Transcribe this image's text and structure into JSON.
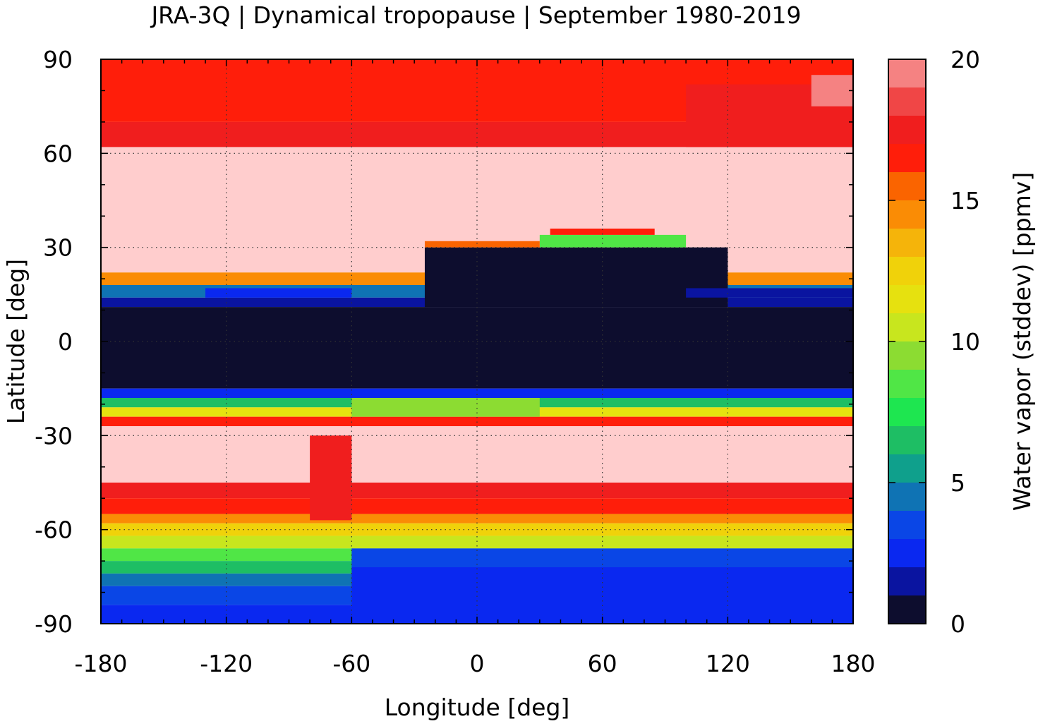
{
  "chart_data": {
    "type": "heatmap",
    "title": "JRA-3Q | Dynamical tropopause | September 1980-2019",
    "xlabel": "Longitude [deg]",
    "ylabel": "Latitude [deg]",
    "xlim": [
      -180,
      180
    ],
    "ylim": [
      -90,
      90
    ],
    "x_ticks": [
      "-180",
      "-120",
      "-60",
      "0",
      "60",
      "120",
      "180"
    ],
    "y_ticks": [
      "90",
      "60",
      "30",
      "0",
      "-30",
      "-60",
      "-90"
    ],
    "x_tick_values": [
      -180,
      -120,
      -60,
      0,
      60,
      120,
      180
    ],
    "y_tick_values": [
      90,
      60,
      30,
      0,
      -30,
      -60,
      -90
    ],
    "grid": true,
    "colorbar": {
      "label": "Water vapor (stddev) [ppmv]",
      "range": [
        0,
        20
      ],
      "tick_values": [
        0,
        5,
        10,
        15,
        20
      ],
      "tick_labels": [
        "0",
        "5",
        "10",
        "15",
        "20"
      ],
      "levels": [
        {
          "min": 0,
          "max": 1,
          "color": "#0d0d2e"
        },
        {
          "min": 1,
          "max": 2,
          "color": "#0a14a0"
        },
        {
          "min": 2,
          "max": 3,
          "color": "#0a28f0"
        },
        {
          "min": 3,
          "max": 4,
          "color": "#0a46e6"
        },
        {
          "min": 4,
          "max": 5,
          "color": "#0f73b4"
        },
        {
          "min": 5,
          "max": 6,
          "color": "#0fa08c"
        },
        {
          "min": 6,
          "max": 7,
          "color": "#1ebe64"
        },
        {
          "min": 7,
          "max": 8,
          "color": "#1ee650"
        },
        {
          "min": 8,
          "max": 9,
          "color": "#50e646"
        },
        {
          "min": 9,
          "max": 10,
          "color": "#8cdc32"
        },
        {
          "min": 10,
          "max": 11,
          "color": "#c8e61e"
        },
        {
          "min": 11,
          "max": 12,
          "color": "#e6e10f"
        },
        {
          "min": 12,
          "max": 13,
          "color": "#f0d20a"
        },
        {
          "min": 13,
          "max": 14,
          "color": "#f5b40a"
        },
        {
          "min": 14,
          "max": 15,
          "color": "#fa8c05"
        },
        {
          "min": 15,
          "max": 16,
          "color": "#fa6400"
        },
        {
          "min": 16,
          "max": 17,
          "color": "#ff1e0a"
        },
        {
          "min": 17,
          "max": 18,
          "color": "#f01e1e"
        },
        {
          "min": 18,
          "max": 19,
          "color": "#f04646"
        },
        {
          "min": 19,
          "max": 20,
          "color": "#f58282"
        },
        {
          "min": 20,
          "max": 21,
          "color": "#ffcdcd"
        }
      ]
    },
    "zonal_bands": [
      {
        "lat_min": 70,
        "lat_max": 90,
        "value": 16.5
      },
      {
        "lat_min": 62,
        "lat_max": 70,
        "value": 17.5
      },
      {
        "lat_min": 22,
        "lat_max": 62,
        "value": 20.5
      },
      {
        "lat_min": 18,
        "lat_max": 22,
        "value": 14.5
      },
      {
        "lat_min": 14,
        "lat_max": 18,
        "value": 4.5
      },
      {
        "lat_min": 11,
        "lat_max": 14,
        "value": 1.5
      },
      {
        "lat_min": -15,
        "lat_max": 11,
        "value": 0.5
      },
      {
        "lat_min": -18,
        "lat_max": -15,
        "value": 2.5
      },
      {
        "lat_min": -21,
        "lat_max": -18,
        "value": 6.5
      },
      {
        "lat_min": -24,
        "lat_max": -21,
        "value": 11.5
      },
      {
        "lat_min": -27,
        "lat_max": -24,
        "value": 16.5
      },
      {
        "lat_min": -45,
        "lat_max": -27,
        "value": 20.5
      },
      {
        "lat_min": -50,
        "lat_max": -45,
        "value": 17.5
      },
      {
        "lat_min": -55,
        "lat_max": -50,
        "value": 16.5
      },
      {
        "lat_min": -58,
        "lat_max": -55,
        "value": 14.5
      },
      {
        "lat_min": -62,
        "lat_max": -58,
        "value": 12.5
      },
      {
        "lat_min": -66,
        "lat_max": -62,
        "value": 10.5
      },
      {
        "lat_min": -70,
        "lat_max": -66,
        "value": 8.5
      },
      {
        "lat_min": -74,
        "lat_max": -70,
        "value": 6.5
      },
      {
        "lat_min": -78,
        "lat_max": -74,
        "value": 4.5
      },
      {
        "lat_min": -84,
        "lat_max": -78,
        "value": 3.5
      },
      {
        "lat_min": -90,
        "lat_max": -84,
        "value": 2.5
      }
    ],
    "features": [
      {
        "lon_min": -25,
        "lon_max": 120,
        "lat_min": 11,
        "lat_max": 30,
        "value": 0.5
      },
      {
        "lon_min": 30,
        "lon_max": 100,
        "lat_min": 30,
        "lat_max": 34,
        "value": 8.5
      },
      {
        "lon_min": 35,
        "lon_max": 85,
        "lat_min": 34,
        "lat_max": 36,
        "value": 16.5
      },
      {
        "lon_min": -25,
        "lon_max": 30,
        "lat_min": 30,
        "lat_max": 32,
        "value": 15.5
      },
      {
        "lon_min": 100,
        "lon_max": 180,
        "lat_min": 14,
        "lat_max": 17,
        "value": 1.5
      },
      {
        "lon_min": -130,
        "lon_max": -60,
        "lat_min": 14,
        "lat_max": 17,
        "value": 2.5
      },
      {
        "lon_min": 100,
        "lon_max": 180,
        "lat_min": 62,
        "lat_max": 82,
        "value": 17.5
      },
      {
        "lon_min": 160,
        "lon_max": 180,
        "lat_min": 75,
        "lat_max": 85,
        "value": 19.5
      },
      {
        "lon_min": -60,
        "lon_max": 30,
        "lat_min": -24,
        "lat_max": -18,
        "value": 9.5
      },
      {
        "lon_min": -80,
        "lon_max": -60,
        "lat_min": -57,
        "lat_max": -30,
        "value": 17.5
      },
      {
        "lon_min": -60,
        "lon_max": 180,
        "lat_min": -90,
        "lat_max": -72,
        "value": 2.5
      },
      {
        "lon_min": -60,
        "lon_max": 180,
        "lat_min": -72,
        "lat_max": -66,
        "value": 3.5
      }
    ]
  }
}
